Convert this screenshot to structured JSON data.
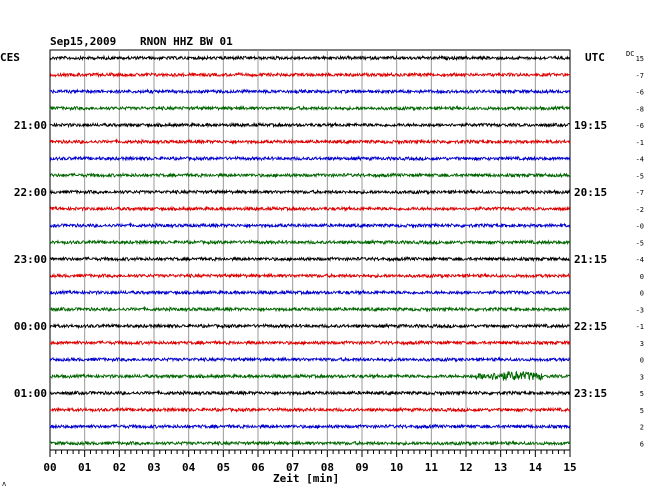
{
  "header": {
    "date": "Sep15,2009",
    "station": "RNON HHZ BW 01"
  },
  "left_timezone": "CES",
  "right_timezone": "UTC",
  "dc_label": "DC",
  "chart_data": {
    "type": "line",
    "xlabel": "Zeit [min]",
    "xlim": [
      0,
      15
    ],
    "x_ticks": [
      "00",
      "01",
      "02",
      "03",
      "04",
      "05",
      "06",
      "07",
      "08",
      "09",
      "10",
      "11",
      "12",
      "13",
      "14",
      "15"
    ],
    "left_hour_labels": [
      {
        "row": 4,
        "label": "21:00"
      },
      {
        "row": 8,
        "label": "22:00"
      },
      {
        "row": 12,
        "label": "23:00"
      },
      {
        "row": 16,
        "label": "00:00"
      },
      {
        "row": 20,
        "label": "01:00"
      }
    ],
    "right_hour_labels": [
      {
        "row": 4,
        "label": "19:15"
      },
      {
        "row": 8,
        "label": "20:15"
      },
      {
        "row": 12,
        "label": "21:15"
      },
      {
        "row": 16,
        "label": "22:15"
      },
      {
        "row": 20,
        "label": "23:15"
      }
    ],
    "trace_colors": [
      "#000000",
      "#dd0000",
      "#0000cc",
      "#006600"
    ],
    "dc_offsets": [
      "15",
      "-7",
      "-6",
      "-8",
      "-6",
      "-1",
      "-4",
      "-5",
      "-7",
      "-2",
      "-0",
      "-5",
      "-4",
      "0",
      "0",
      "-3",
      "-1",
      "3",
      "0",
      "3",
      "5",
      "5",
      "2",
      "6"
    ],
    "event": {
      "row": 19,
      "start_min": 12.3,
      "end_min": 14.2,
      "peak_min": 13.4
    },
    "rows": 24
  }
}
